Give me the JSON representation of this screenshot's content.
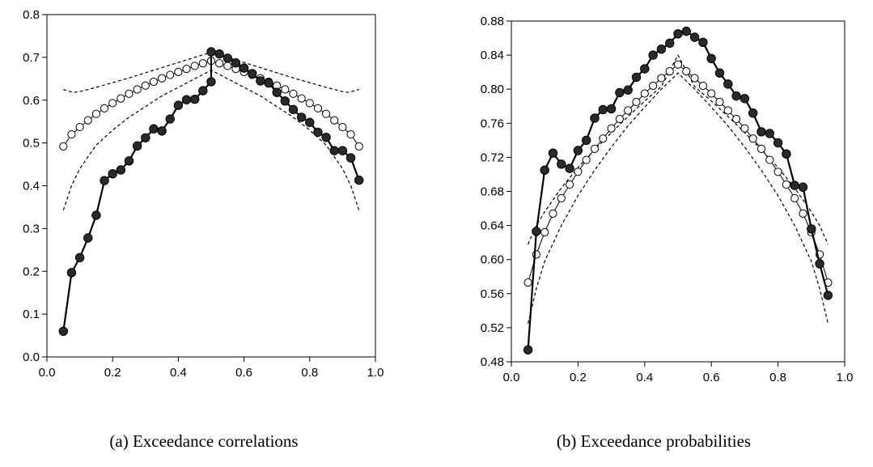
{
  "captions": {
    "a": "(a)  Exceedance correlations",
    "b": "(b)  Exceedance probabilities"
  },
  "chart_data": [
    {
      "type": "line",
      "caption": "(a)  Exceedance correlations",
      "xlim": [
        0.0,
        1.0
      ],
      "ylim": [
        0.0,
        0.8
      ],
      "xticks": [
        "0.0",
        "0.2",
        "0.4",
        "0.6",
        "0.8",
        "1.0"
      ],
      "yticks": [
        "0.0",
        "0.1",
        "0.2",
        "0.3",
        "0.4",
        "0.5",
        "0.6",
        "0.7",
        "0.8"
      ],
      "grid": false,
      "series": [
        {
          "style": "filled-circles",
          "x": [
            0.05,
            0.075,
            0.1,
            0.125,
            0.15,
            0.175,
            0.2,
            0.225,
            0.25,
            0.275,
            0.3,
            0.325,
            0.35,
            0.375,
            0.4,
            0.425,
            0.45,
            0.475,
            0.5,
            0.5,
            0.525,
            0.55,
            0.575,
            0.6,
            0.625,
            0.65,
            0.675,
            0.7,
            0.725,
            0.75,
            0.775,
            0.8,
            0.825,
            0.85,
            0.875,
            0.9,
            0.925,
            0.95
          ],
          "y": [
            0.06,
            0.197,
            0.232,
            0.278,
            0.331,
            0.412,
            0.428,
            0.437,
            0.458,
            0.493,
            0.512,
            0.533,
            0.528,
            0.556,
            0.588,
            0.601,
            0.602,
            0.622,
            0.643,
            0.713,
            0.708,
            0.698,
            0.687,
            0.675,
            0.662,
            0.645,
            0.64,
            0.618,
            0.598,
            0.578,
            0.56,
            0.548,
            0.525,
            0.513,
            0.482,
            0.482,
            0.465,
            0.413
          ]
        },
        {
          "style": "open-circles",
          "x": [
            0.05,
            0.075,
            0.1,
            0.125,
            0.15,
            0.175,
            0.2,
            0.225,
            0.25,
            0.275,
            0.3,
            0.325,
            0.35,
            0.375,
            0.4,
            0.425,
            0.45,
            0.475,
            0.5,
            0.525,
            0.55,
            0.575,
            0.6,
            0.625,
            0.65,
            0.675,
            0.7,
            0.725,
            0.75,
            0.775,
            0.8,
            0.825,
            0.85,
            0.875,
            0.9,
            0.925,
            0.95
          ],
          "y": [
            0.492,
            0.52,
            0.537,
            0.553,
            0.568,
            0.581,
            0.593,
            0.604,
            0.615,
            0.625,
            0.634,
            0.643,
            0.651,
            0.659,
            0.666,
            0.673,
            0.68,
            0.686,
            0.692,
            0.686,
            0.68,
            0.673,
            0.666,
            0.659,
            0.651,
            0.643,
            0.634,
            0.625,
            0.615,
            0.604,
            0.593,
            0.581,
            0.568,
            0.553,
            0.537,
            0.52,
            0.492
          ]
        },
        {
          "style": "dashed",
          "x": [
            0.05,
            0.08,
            0.1,
            0.15,
            0.2,
            0.25,
            0.3,
            0.35,
            0.4,
            0.45,
            0.5,
            0.55,
            0.6,
            0.65,
            0.7,
            0.75,
            0.8,
            0.85,
            0.9,
            0.92,
            0.95
          ],
          "y": [
            0.625,
            0.618,
            0.62,
            0.63,
            0.641,
            0.652,
            0.664,
            0.676,
            0.688,
            0.7,
            0.712,
            0.7,
            0.688,
            0.676,
            0.664,
            0.652,
            0.641,
            0.63,
            0.62,
            0.618,
            0.625
          ]
        },
        {
          "style": "dashed",
          "x": [
            0.05,
            0.075,
            0.1,
            0.15,
            0.2,
            0.25,
            0.3,
            0.35,
            0.4,
            0.45,
            0.5,
            0.55,
            0.6,
            0.65,
            0.7,
            0.75,
            0.8,
            0.85,
            0.9,
            0.925,
            0.95
          ],
          "y": [
            0.343,
            0.4,
            0.44,
            0.495,
            0.53,
            0.56,
            0.585,
            0.61,
            0.63,
            0.65,
            0.67,
            0.65,
            0.63,
            0.61,
            0.585,
            0.56,
            0.53,
            0.495,
            0.44,
            0.4,
            0.343
          ]
        }
      ]
    },
    {
      "type": "line",
      "caption": "(b)  Exceedance probabilities",
      "xlim": [
        0.0,
        1.0
      ],
      "ylim": [
        0.48,
        0.88
      ],
      "xticks": [
        "0.0",
        "0.2",
        "0.4",
        "0.6",
        "0.8",
        "1.0"
      ],
      "yticks": [
        "0.48",
        "0.52",
        "0.56",
        "0.60",
        "0.64",
        "0.68",
        "0.72",
        "0.76",
        "0.80",
        "0.84",
        "0.88"
      ],
      "grid": false,
      "series": [
        {
          "style": "filled-circles",
          "x": [
            0.05,
            0.075,
            0.1,
            0.125,
            0.15,
            0.175,
            0.2,
            0.225,
            0.25,
            0.275,
            0.3,
            0.325,
            0.35,
            0.375,
            0.4,
            0.425,
            0.45,
            0.475,
            0.5,
            0.525,
            0.55,
            0.575,
            0.6,
            0.625,
            0.65,
            0.675,
            0.7,
            0.725,
            0.75,
            0.775,
            0.8,
            0.825,
            0.85,
            0.875,
            0.9,
            0.925,
            0.95
          ],
          "y": [
            0.494,
            0.633,
            0.705,
            0.725,
            0.712,
            0.707,
            0.728,
            0.74,
            0.766,
            0.776,
            0.777,
            0.796,
            0.799,
            0.814,
            0.824,
            0.84,
            0.847,
            0.854,
            0.865,
            0.868,
            0.861,
            0.855,
            0.836,
            0.819,
            0.806,
            0.792,
            0.789,
            0.772,
            0.75,
            0.748,
            0.737,
            0.724,
            0.687,
            0.685,
            0.636,
            0.595,
            0.558
          ]
        },
        {
          "style": "open-circles",
          "x": [
            0.05,
            0.075,
            0.1,
            0.125,
            0.15,
            0.175,
            0.2,
            0.225,
            0.25,
            0.275,
            0.3,
            0.325,
            0.35,
            0.375,
            0.4,
            0.425,
            0.45,
            0.475,
            0.5,
            0.525,
            0.55,
            0.575,
            0.6,
            0.625,
            0.65,
            0.675,
            0.7,
            0.725,
            0.75,
            0.775,
            0.8,
            0.825,
            0.85,
            0.875,
            0.9,
            0.925,
            0.95
          ],
          "y": [
            0.573,
            0.606,
            0.632,
            0.654,
            0.672,
            0.688,
            0.703,
            0.717,
            0.73,
            0.742,
            0.754,
            0.765,
            0.775,
            0.785,
            0.795,
            0.804,
            0.813,
            0.821,
            0.829,
            0.821,
            0.813,
            0.804,
            0.795,
            0.785,
            0.775,
            0.765,
            0.754,
            0.742,
            0.73,
            0.717,
            0.703,
            0.688,
            0.672,
            0.654,
            0.632,
            0.606,
            0.573
          ]
        },
        {
          "style": "dashed",
          "x": [
            0.05,
            0.075,
            0.1,
            0.15,
            0.2,
            0.25,
            0.3,
            0.35,
            0.4,
            0.45,
            0.5,
            0.55,
            0.6,
            0.65,
            0.7,
            0.75,
            0.8,
            0.85,
            0.9,
            0.925,
            0.95
          ],
          "y": [
            0.618,
            0.64,
            0.656,
            0.684,
            0.708,
            0.729,
            0.749,
            0.768,
            0.786,
            0.803,
            0.84,
            0.803,
            0.786,
            0.768,
            0.749,
            0.729,
            0.708,
            0.684,
            0.656,
            0.64,
            0.618
          ],
          "x_dense": true
        },
        {
          "style": "dashed",
          "x": [
            0.05,
            0.075,
            0.1,
            0.15,
            0.2,
            0.25,
            0.3,
            0.35,
            0.4,
            0.45,
            0.5,
            0.55,
            0.6,
            0.65,
            0.7,
            0.75,
            0.8,
            0.85,
            0.9,
            0.925,
            0.95
          ],
          "y": [
            0.525,
            0.566,
            0.598,
            0.64,
            0.675,
            0.705,
            0.732,
            0.757,
            0.779,
            0.8,
            0.819,
            0.8,
            0.779,
            0.757,
            0.732,
            0.705,
            0.675,
            0.64,
            0.598,
            0.566,
            0.525
          ]
        }
      ]
    }
  ]
}
